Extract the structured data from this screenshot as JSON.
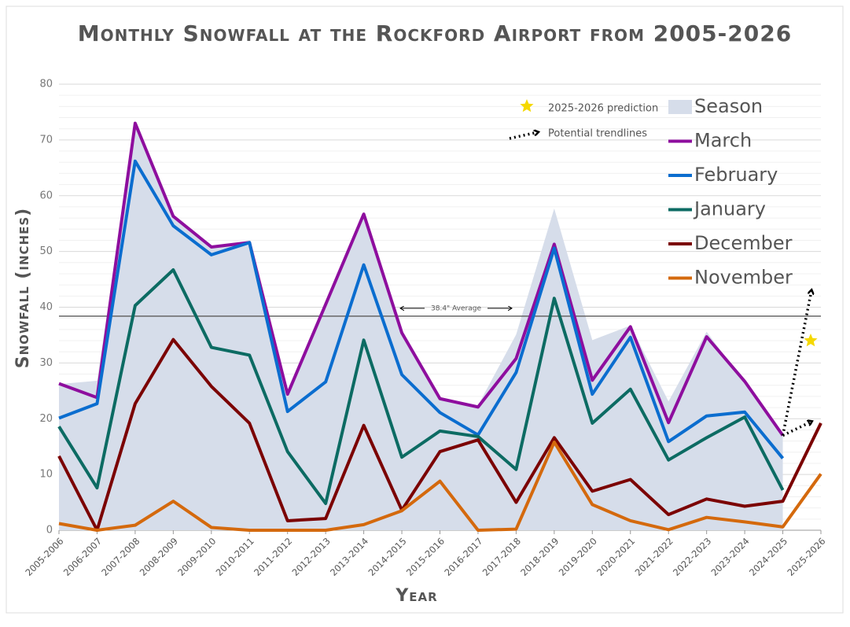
{
  "chart_data": {
    "type": "line",
    "title": "Monthly Snowfall at the Rockford Airport from 2005-2026",
    "x_label": "Year",
    "y_label": "Snowfall (inches)",
    "categories": [
      "2005-2006",
      "2006-2007",
      "2007-2008",
      "2008-2009",
      "2009-2010",
      "2010-2011",
      "2011-2012",
      "2012-2013",
      "2013-2014",
      "2014-2015",
      "2015-2016",
      "2016-2017",
      "2017-2018",
      "2018-2019",
      "2019-2020",
      "2020-2021",
      "2021-2022",
      "2022-2023",
      "2023-2024",
      "2024-2025",
      "2025-2026"
    ],
    "series": [
      {
        "name": "Season",
        "color": "#d6ddea",
        "style": "area",
        "values": [
          26.2,
          26.8,
          73,
          56.6,
          51,
          51.6,
          24.5,
          39.8,
          56.7,
          35.6,
          23.7,
          22.4,
          35.1,
          57.7,
          34.1,
          36.7,
          23.1,
          35.6,
          26.4,
          16.9,
          null
        ]
      },
      {
        "name": "March",
        "color": "#8e0e9e",
        "values": [
          26.3,
          23.8,
          73,
          56.3,
          50.8,
          51.6,
          24.4,
          40.5,
          56.7,
          35.4,
          23.6,
          22.1,
          30.8,
          51.3,
          26.9,
          36.5,
          19.3,
          34.7,
          26.7,
          17,
          null
        ]
      },
      {
        "name": "February",
        "color": "#0b6dcf",
        "values": [
          20.1,
          22.7,
          66.2,
          54.6,
          49.4,
          51.6,
          21.3,
          26.6,
          47.6,
          27.9,
          21.1,
          17.1,
          28.3,
          50.6,
          24.4,
          34.6,
          15.9,
          20.5,
          21.2,
          12.9,
          null
        ]
      },
      {
        "name": "January",
        "color": "#0c6b63",
        "values": [
          18.6,
          7.6,
          40.3,
          46.7,
          32.8,
          31.4,
          14.1,
          4.8,
          34.1,
          13.1,
          17.8,
          16.8,
          10.9,
          41.6,
          19.2,
          25.3,
          12.6,
          16.6,
          20.3,
          7.2,
          null
        ]
      },
      {
        "name": "December",
        "color": "#7b0202",
        "values": [
          13.3,
          0,
          22.7,
          34.2,
          25.8,
          19.2,
          1.7,
          2.1,
          18.8,
          3.6,
          14.1,
          16.2,
          5,
          16.6,
          7,
          9.1,
          2.8,
          5.6,
          4.3,
          5.2,
          19.2
        ]
      },
      {
        "name": "November",
        "color": "#d4690d",
        "values": [
          1.2,
          0,
          0.9,
          5.2,
          0.5,
          0,
          0,
          0,
          1,
          3.5,
          8.8,
          0,
          0.2,
          15.8,
          4.6,
          1.7,
          0.1,
          2.3,
          1.5,
          0.6,
          10.1
        ]
      }
    ],
    "average": {
      "value": 38.4,
      "label": "38.4\" Average"
    },
    "prediction": {
      "label": "2025-2026 prediction",
      "value": 34,
      "color": "#f5d800"
    },
    "trendlines": {
      "label": "Potential trendlines",
      "ends": [
        43,
        19.5
      ]
    },
    "ylim": [
      0,
      80
    ],
    "yticks": [
      0,
      10,
      20,
      30,
      40,
      50,
      60,
      70,
      80
    ],
    "grid": true
  }
}
